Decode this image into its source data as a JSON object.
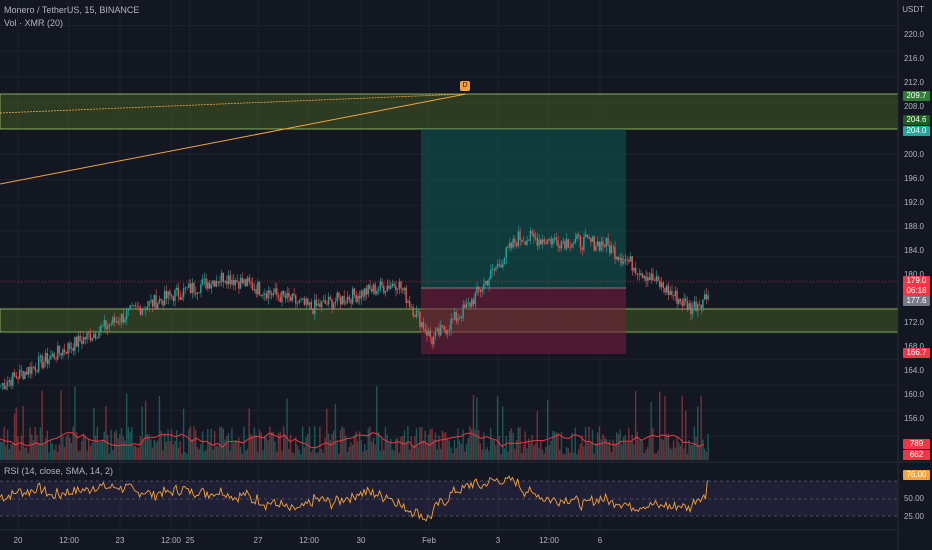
{
  "header": {
    "symbol_line": "Monero / TetherUS, 15, BINANCE",
    "volume_line": "Vol · XMR (20)",
    "currency": "USDT"
  },
  "rsi": {
    "label": "RSI (14, close, SMA, 14, 2)",
    "ticks": [
      "75.00",
      "50.00",
      "25.00"
    ],
    "current": "76.00"
  },
  "price_axis": {
    "ticks": [
      "220.0",
      "216.0",
      "212.0",
      "208.0",
      "200.0",
      "196.0",
      "192.0",
      "188.0",
      "184.0",
      "180.0",
      "172.0",
      "168.0",
      "164.0",
      "160.0",
      "156.0"
    ]
  },
  "time_axis": {
    "labels": [
      "20",
      "12:00",
      "23",
      "12:00",
      "25",
      "27",
      "12:00",
      "30",
      "Feb",
      "3",
      "12:00",
      "6"
    ]
  },
  "price_tags": [
    {
      "text": "209.7",
      "color": "#2e7d32"
    },
    {
      "text": "204.6",
      "color": "#1f5f1f"
    },
    {
      "text": "204.0",
      "color": "#26a69a"
    },
    {
      "text": "179.0",
      "color": "#f23645"
    },
    {
      "text": "06:18",
      "color": "#f23645"
    },
    {
      "text": "177.6",
      "color": "#787b86"
    },
    {
      "text": "166.7",
      "color": "#f23645"
    },
    {
      "text": "789",
      "color": "#f23645"
    },
    {
      "text": "662",
      "color": "#f23645"
    }
  ],
  "alert_marker": "D",
  "chart_data": {
    "type": "candlestick",
    "title": "Monero / TetherUS, 15, BINANCE",
    "ylim": [
      152,
      224
    ],
    "x_range": [
      "20",
      "6"
    ],
    "series": [
      {
        "name": "XMR/USDT",
        "approx_path": [
          [
            0,
            164
          ],
          [
            8,
            176
          ],
          [
            13,
            181
          ],
          [
            18,
            176
          ],
          [
            23,
            180
          ],
          [
            25,
            171
          ],
          [
            27,
            176
          ],
          [
            30,
            187
          ],
          [
            35,
            186
          ],
          [
            38,
            180
          ],
          [
            40,
            176
          ],
          [
            41,
            178
          ]
        ]
      }
    ]
  },
  "colors": {
    "up": "#26a69a",
    "down": "#ef5350",
    "zone": "#8bc34a",
    "trend": "#f7a23c",
    "rsi": "#f7a23c"
  }
}
